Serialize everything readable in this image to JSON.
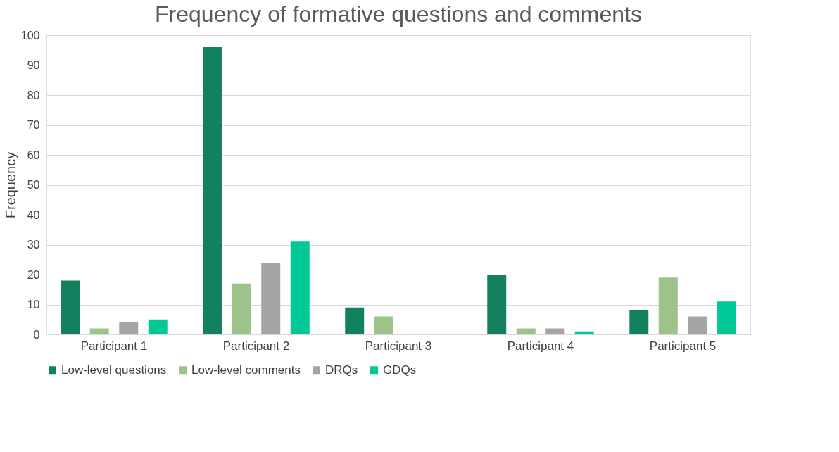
{
  "chart_data": {
    "type": "bar",
    "title": "Frequency of formative questions and comments",
    "ylabel": "Frequency",
    "categories": [
      "Participant 1",
      "Participant 2",
      "Participant 3",
      "Participant 4",
      "Participant 5"
    ],
    "series": [
      {
        "name": "Low-level questions",
        "color": "#138060",
        "values": [
          18,
          96,
          9,
          20,
          8
        ]
      },
      {
        "name": "Low-level comments",
        "color": "#9dc38a",
        "values": [
          2,
          17,
          6,
          2,
          19
        ]
      },
      {
        "name": "DRQs",
        "color": "#a5a5a5",
        "values": [
          4,
          24,
          0,
          2,
          6
        ]
      },
      {
        "name": "GDQs",
        "color": "#00c896",
        "values": [
          5,
          31,
          0,
          1,
          11
        ]
      }
    ],
    "ylim": [
      0,
      100
    ],
    "yticks": [
      0,
      10,
      20,
      30,
      40,
      50,
      60,
      70,
      80,
      90,
      100
    ],
    "grid": "y",
    "legend": "bottom"
  }
}
